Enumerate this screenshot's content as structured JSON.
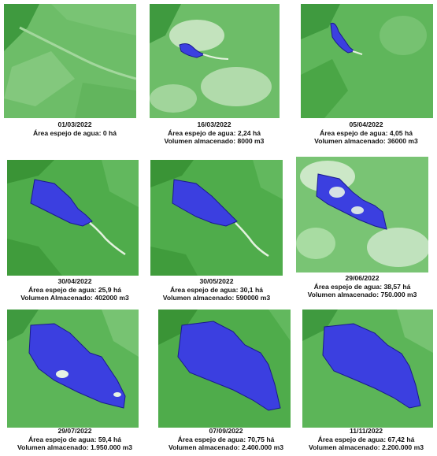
{
  "colors": {
    "vegetation_dark": "#3f9a3f",
    "vegetation_mid": "#5bb45a",
    "vegetation_light": "#8fd08a",
    "cloud": "#e8f3e4",
    "water_fill": "#3b3fe0",
    "water_outline": "#1a1a8c"
  },
  "panels": [
    {
      "date": "01/03/2022",
      "area": "Área espejo de agua: 0 há",
      "volume": ""
    },
    {
      "date": "16/03/2022",
      "area": "Área espejo de agua: 2,24 há",
      "volume": "Volumen almacenado: 8000 m3"
    },
    {
      "date": "05/04/2022",
      "area": "Área espejo de agua: 4,05 há",
      "volume": "Volumen almacenado: 36000 m3"
    },
    {
      "date": "30/04/2022",
      "area": "Área espejo de agua: 25,9 há",
      "volume": "Volumen Almacenado: 402000 m3"
    },
    {
      "date": "30/05/2022",
      "area": "Área espejo de agua: 30,1 há",
      "volume": "Volumen almacenado: 590000 m3"
    },
    {
      "date": "29/06/2022",
      "area": "Área espejo de agua: 38,57 há",
      "volume": "Volumen almacenado: 750.000 m3"
    },
    {
      "date": "29/07/2022",
      "area": "Área espejo de agua: 59,4 há",
      "volume": "Volumen almacenado: 1.950.000 m3"
    },
    {
      "date": "07/09/2022",
      "area": "Área espejo de agua: 70,75 há",
      "volume": "Volumen almacenado: 2.400.000 m3"
    },
    {
      "date": "11/11/2022",
      "area": "Área espejo de agua: 67,42 há",
      "volume": "Volumen almacenado: 2.200.000 m3"
    }
  ]
}
